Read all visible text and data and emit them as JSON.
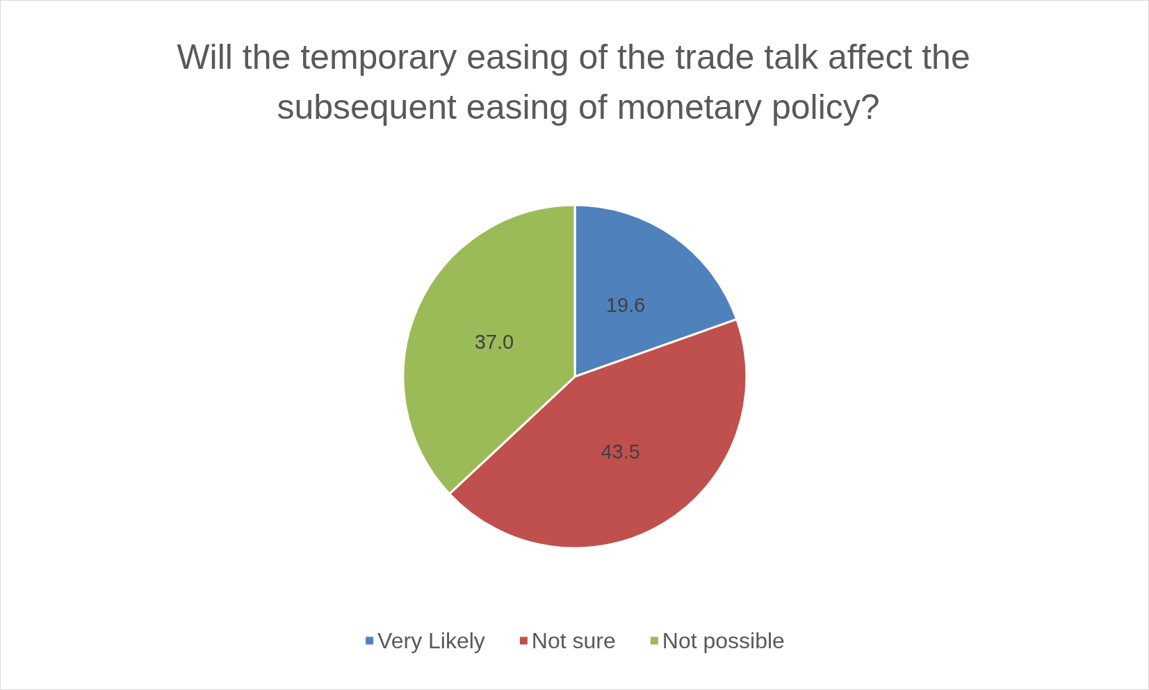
{
  "chart_data": {
    "type": "pie",
    "title": "Will the temporary easing of the trade talk affect the subsequent easing of monetary policy?",
    "categories": [
      "Very Likely",
      "Not sure",
      "Not possible"
    ],
    "values": [
      19.6,
      43.5,
      37.0
    ],
    "value_labels": [
      "19.6",
      "43.5",
      "37.0"
    ],
    "colors": [
      "#4f81bd",
      "#c0504d",
      "#9bbb59"
    ],
    "legend": "bottom"
  }
}
